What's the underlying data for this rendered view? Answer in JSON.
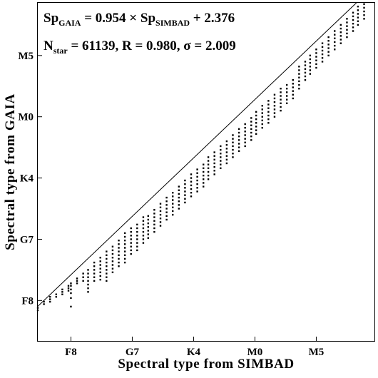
{
  "chart_data": {
    "type": "scatter",
    "xlabel": "Spectral type from SIMBAD",
    "ylabel": "Spectral type from GAIA",
    "xlim": [
      3.3,
      30.8
    ],
    "ylim": [
      2.7,
      30.3
    ],
    "x_ticks": [
      {
        "value": 6,
        "label": "F8"
      },
      {
        "value": 11,
        "label": "G7"
      },
      {
        "value": 16,
        "label": "K4"
      },
      {
        "value": 21,
        "label": "M0"
      },
      {
        "value": 26,
        "label": "M5"
      }
    ],
    "y_ticks": [
      {
        "value": 6,
        "label": "F8"
      },
      {
        "value": 11,
        "label": "G7"
      },
      {
        "value": 16,
        "label": "K4"
      },
      {
        "value": 21,
        "label": "M0"
      },
      {
        "value": 26,
        "label": "M5"
      }
    ],
    "grid": false,
    "fit_line": {
      "slope": 0.954,
      "intercept": 2.376
    },
    "annotation": {
      "line1": {
        "a": "Sp",
        "a_sub": "GAIA",
        "b": " = 0.954 × Sp",
        "b_sub": "SIMBAD",
        "c": " + 2.376"
      },
      "line2": {
        "a": "N",
        "a_sub": "star",
        "b": " = 61139, R = 0.980, σ  = 2.009"
      }
    },
    "columns": [
      {
        "x": 3.3,
        "y": [
          5.2,
          5.4
        ]
      },
      {
        "x": 3.8,
        "y": [
          5.7,
          5.9
        ]
      },
      {
        "x": 4.3,
        "y": [
          5.9,
          6.1,
          6.3
        ]
      },
      {
        "x": 4.8,
        "y": [
          6.3,
          6.5
        ]
      },
      {
        "x": 5.3,
        "y": [
          6.5,
          6.7,
          6.9
        ]
      },
      {
        "x": 5.8,
        "y": [
          6.8,
          7.0,
          7.2
        ]
      },
      {
        "x": 6.0,
        "y": [
          5.5,
          6.2,
          6.6,
          6.9,
          7.2,
          7.4
        ]
      },
      {
        "x": 6.5,
        "y": [
          7.4,
          7.6,
          7.8
        ]
      },
      {
        "x": 7.0,
        "y": [
          7.6,
          7.9,
          8.2
        ]
      },
      {
        "x": 7.4,
        "y": [
          6.7,
          7.0,
          7.3,
          7.6,
          7.9,
          8.2,
          8.5
        ]
      },
      {
        "x": 7.9,
        "y": [
          7.6,
          7.9,
          8.2,
          8.5,
          8.8,
          9.1
        ]
      },
      {
        "x": 8.4,
        "y": [
          7.7,
          8.0,
          8.3,
          8.6,
          8.9,
          9.2,
          9.5
        ]
      },
      {
        "x": 8.9,
        "y": [
          7.6,
          7.9,
          8.2,
          8.5,
          8.8,
          9.1,
          9.4,
          9.7,
          10.0
        ]
      },
      {
        "x": 9.4,
        "y": [
          8.3,
          8.6,
          8.9,
          9.2,
          9.5,
          9.8,
          10.1,
          10.4
        ]
      },
      {
        "x": 9.9,
        "y": [
          8.8,
          9.1,
          9.4,
          9.7,
          10.0,
          10.3,
          10.6,
          10.9
        ]
      },
      {
        "x": 10.4,
        "y": [
          9.1,
          9.4,
          9.7,
          10.0,
          10.3,
          10.6,
          10.9,
          11.2,
          11.5
        ]
      },
      {
        "x": 10.9,
        "y": [
          9.8,
          10.1,
          10.4,
          10.7,
          11.0,
          11.3,
          11.6,
          11.9
        ]
      },
      {
        "x": 11.4,
        "y": [
          10.1,
          10.4,
          10.7,
          11.0,
          11.3,
          11.6,
          11.9,
          12.2
        ]
      },
      {
        "x": 11.9,
        "y": [
          10.7,
          11.0,
          11.3,
          11.6,
          11.9,
          12.2,
          12.5,
          12.8
        ]
      },
      {
        "x": 12.3,
        "y": [
          11.1,
          11.4,
          11.7,
          12.0,
          12.3,
          12.6,
          12.9
        ]
      },
      {
        "x": 12.8,
        "y": [
          11.6,
          11.9,
          12.2,
          12.5,
          12.8,
          13.1,
          13.4
        ]
      },
      {
        "x": 13.3,
        "y": [
          12.1,
          12.4,
          12.7,
          13.0,
          13.3,
          13.6,
          13.9
        ]
      },
      {
        "x": 13.8,
        "y": [
          12.6,
          12.9,
          13.2,
          13.5,
          13.8,
          14.1,
          14.4
        ]
      },
      {
        "x": 14.3,
        "y": [
          13.0,
          13.3,
          13.6,
          13.9,
          14.2,
          14.5,
          14.8
        ]
      },
      {
        "x": 14.8,
        "y": [
          13.5,
          13.8,
          14.1,
          14.4,
          14.7,
          15.0,
          15.3
        ]
      },
      {
        "x": 15.3,
        "y": [
          14.0,
          14.3,
          14.6,
          14.9,
          15.2,
          15.5,
          15.8
        ]
      },
      {
        "x": 15.8,
        "y": [
          14.5,
          14.8,
          15.1,
          15.4,
          15.7,
          16.0,
          16.3
        ]
      },
      {
        "x": 16.3,
        "y": [
          14.9,
          15.2,
          15.5,
          15.8,
          16.1,
          16.4,
          16.7
        ]
      },
      {
        "x": 16.8,
        "y": [
          15.3,
          15.6,
          15.9,
          16.2,
          16.5,
          16.8,
          17.1
        ]
      },
      {
        "x": 17.2,
        "y": [
          15.9,
          16.2,
          16.5,
          16.8,
          17.1,
          17.4,
          17.7
        ]
      },
      {
        "x": 17.7,
        "y": [
          16.3,
          16.6,
          16.9,
          17.2,
          17.5,
          17.8,
          18.1
        ]
      },
      {
        "x": 18.2,
        "y": [
          16.8,
          17.1,
          17.4,
          17.7,
          18.0,
          18.3,
          18.6
        ]
      },
      {
        "x": 18.7,
        "y": [
          17.2,
          17.5,
          17.8,
          18.1,
          18.4,
          18.7,
          19.0
        ]
      },
      {
        "x": 19.2,
        "y": [
          17.7,
          18.0,
          18.3,
          18.6,
          18.9,
          19.2,
          19.5
        ]
      },
      {
        "x": 19.7,
        "y": [
          18.2,
          18.5,
          18.8,
          19.1,
          19.4,
          19.7,
          20.0
        ]
      },
      {
        "x": 20.2,
        "y": [
          18.6,
          18.9,
          19.2,
          19.5,
          19.8,
          20.1,
          20.4
        ]
      },
      {
        "x": 20.7,
        "y": [
          19.1,
          19.4,
          19.7,
          20.0,
          20.3,
          20.6,
          20.9
        ]
      },
      {
        "x": 21.1,
        "y": [
          19.6,
          19.9,
          20.2,
          20.5,
          20.8,
          21.1,
          21.4
        ]
      },
      {
        "x": 21.6,
        "y": [
          20.1,
          20.4,
          20.7,
          21.0,
          21.3,
          21.6,
          21.9
        ]
      },
      {
        "x": 22.1,
        "y": [
          20.5,
          20.8,
          21.1,
          21.4,
          21.7,
          22.0,
          22.3
        ]
      },
      {
        "x": 22.6,
        "y": [
          21.0,
          21.3,
          21.6,
          21.9,
          22.2,
          22.5,
          22.8
        ]
      },
      {
        "x": 23.1,
        "y": [
          21.5,
          21.8,
          22.1,
          22.4,
          22.7,
          23.0,
          23.3
        ]
      },
      {
        "x": 23.6,
        "y": [
          22.1,
          22.4,
          22.7,
          23.0,
          23.3,
          23.6
        ]
      },
      {
        "x": 24.1,
        "y": [
          22.5,
          22.8,
          23.1,
          23.4,
          23.7,
          24.0
        ]
      },
      {
        "x": 24.6,
        "y": [
          23.3,
          23.6,
          23.9,
          24.2,
          24.5,
          24.8,
          25.1
        ]
      },
      {
        "x": 25.1,
        "y": [
          24.0,
          24.3,
          24.6,
          24.9,
          25.2,
          25.5
        ]
      },
      {
        "x": 25.5,
        "y": [
          24.5,
          24.8,
          25.1,
          25.4,
          25.7,
          26.0
        ]
      },
      {
        "x": 26.0,
        "y": [
          25.0,
          25.3,
          25.6,
          25.9,
          26.2,
          26.5
        ]
      },
      {
        "x": 26.5,
        "y": [
          25.5,
          25.8,
          26.1,
          26.4,
          26.7,
          27.0
        ]
      },
      {
        "x": 27.0,
        "y": [
          26.0,
          26.3,
          26.6,
          26.9,
          27.2,
          27.5
        ]
      },
      {
        "x": 27.5,
        "y": [
          26.5,
          26.8,
          27.1,
          27.4,
          27.7,
          28.0
        ]
      },
      {
        "x": 28.0,
        "y": [
          27.0,
          27.3,
          27.6,
          27.9,
          28.2,
          28.5
        ]
      },
      {
        "x": 28.5,
        "y": [
          27.5,
          27.8,
          28.1,
          28.4,
          28.7,
          29.0
        ]
      },
      {
        "x": 29.0,
        "y": [
          28.0,
          28.3,
          28.6,
          28.9,
          29.2,
          29.5
        ]
      },
      {
        "x": 29.4,
        "y": [
          28.5,
          28.8,
          29.1,
          29.4,
          29.7,
          30.0
        ]
      },
      {
        "x": 29.9,
        "y": [
          29.0,
          29.3,
          29.6,
          29.9,
          30.2
        ]
      }
    ]
  }
}
